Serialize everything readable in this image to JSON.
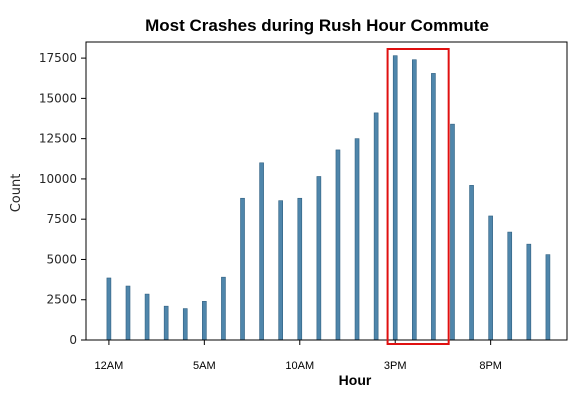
{
  "chart_data": {
    "type": "bar",
    "title": "Most Crashes during Rush Hour Commute",
    "xlabel": "Hour",
    "ylabel": "Count",
    "x": [
      0,
      1,
      2,
      3,
      4,
      5,
      6,
      7,
      8,
      9,
      10,
      11,
      12,
      13,
      14,
      15,
      16,
      17,
      18,
      19,
      20,
      21,
      22,
      23
    ],
    "values": [
      3850,
      3350,
      2850,
      2100,
      1950,
      2400,
      3900,
      8800,
      11000,
      8650,
      8800,
      10150,
      11800,
      12500,
      14100,
      17650,
      17400,
      16550,
      13400,
      9600,
      7700,
      6700,
      5950,
      5300
    ],
    "xticks": [
      {
        "x": 0,
        "label": "12AM"
      },
      {
        "x": 5,
        "label": "5AM"
      },
      {
        "x": 10,
        "label": "10AM"
      },
      {
        "x": 15,
        "label": "3PM"
      },
      {
        "x": 20,
        "label": "8PM"
      }
    ],
    "yticks": [
      0,
      2500,
      5000,
      7500,
      10000,
      12500,
      15000,
      17500
    ],
    "ylim": [
      0,
      18500
    ],
    "xlim": [
      -1.2,
      24.0
    ],
    "grid": false,
    "bar_color": "#4f86ab",
    "bar_edge_color": "#2f5f80",
    "highlight": {
      "x_from": 14.6,
      "x_to": 17.8,
      "color": "#e01010"
    }
  }
}
